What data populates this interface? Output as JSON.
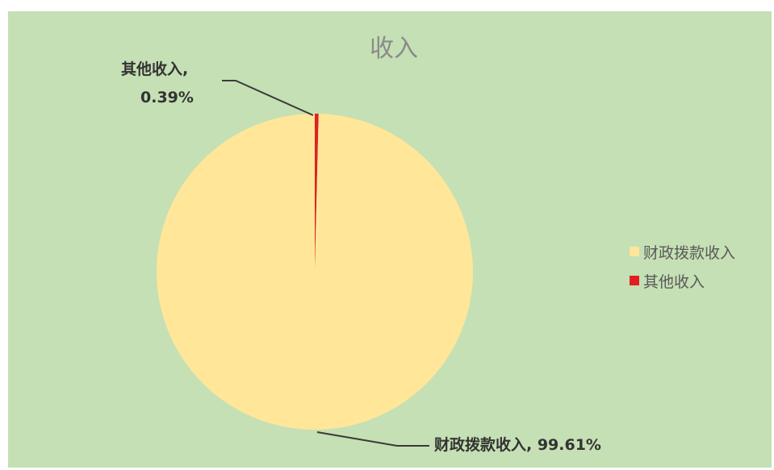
{
  "chart_data": {
    "type": "pie",
    "title": "收入",
    "slices": [
      {
        "name": "财政拨款收入",
        "value": 99.61,
        "label": "财政拨款收入, 99.61%",
        "color": "#ffe699"
      },
      {
        "name": "其他收入",
        "value": 0.39,
        "label_line1": "其他收入,",
        "label_line2": "0.39%",
        "color": "#e02020"
      }
    ],
    "legend": {
      "placement": "right",
      "entries": [
        "财政拨款收入",
        "其他收入"
      ]
    },
    "background_color": "#c5e0b4"
  }
}
